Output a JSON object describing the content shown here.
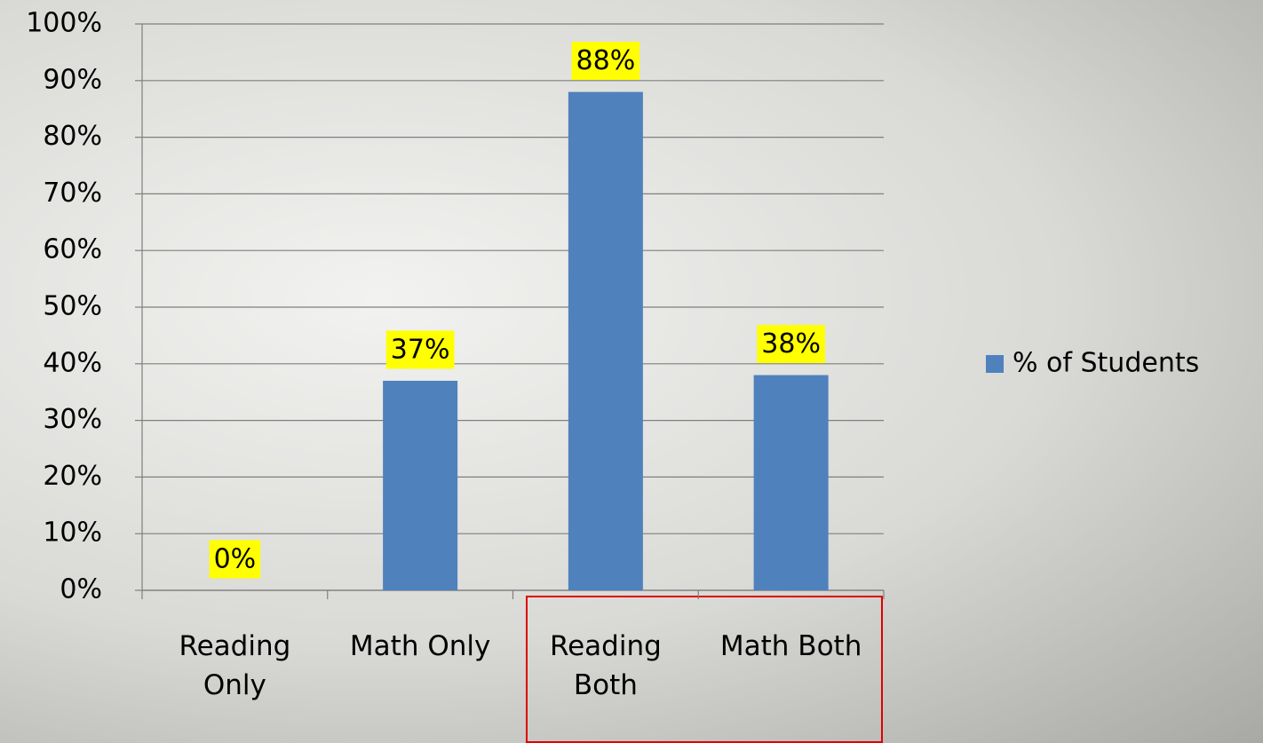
{
  "chart_data": {
    "type": "bar",
    "categories": [
      "Reading Only",
      "Math Only",
      "Reading Both",
      "Math Both"
    ],
    "series": [
      {
        "name": "% of Students",
        "color": "#4f81bd",
        "values": [
          0,
          37,
          88,
          38
        ],
        "value_labels": [
          "0%",
          "37%",
          "88%",
          "38%"
        ]
      }
    ],
    "ylim": [
      0,
      100
    ],
    "yticks": [
      {
        "value": 0,
        "label": "0%"
      },
      {
        "value": 10,
        "label": "10%"
      },
      {
        "value": 20,
        "label": "20%"
      },
      {
        "value": 30,
        "label": "30%"
      },
      {
        "value": 40,
        "label": "40%"
      },
      {
        "value": 50,
        "label": "50%"
      },
      {
        "value": 60,
        "label": "60%"
      },
      {
        "value": 70,
        "label": "70%"
      },
      {
        "value": 80,
        "label": "80%"
      },
      {
        "value": 90,
        "label": "90%"
      },
      {
        "value": 100,
        "label": "100%"
      }
    ],
    "grid": true,
    "legend": "right",
    "value_label_background": "#ffff00"
  }
}
